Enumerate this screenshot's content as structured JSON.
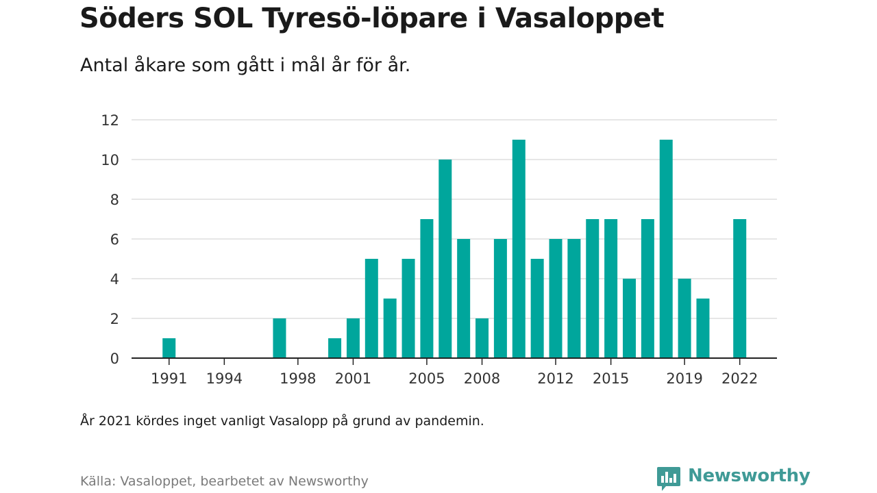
{
  "title": "Söders SOL Tyresö-löpare i Vasaloppet",
  "subtitle": "Antal åkare som gått i mål år för år.",
  "note": "År 2021 kördes inget vanligt Vasalopp på grund av pandemin.",
  "source": "Källa: Vasaloppet, bearbetet av Newsworthy",
  "brand": "Newsworthy",
  "colors": {
    "bar": "#00a69c",
    "grid": "#dddddd",
    "axis": "#222222",
    "brand": "#3f9a96"
  },
  "icons": {
    "logo": "newsworthy-logo-icon"
  },
  "chart_data": {
    "type": "bar",
    "title": "Söders SOL Tyresö-löpare i Vasaloppet",
    "subtitle": "Antal åkare som gått i mål år för år.",
    "xlabel": "",
    "ylabel": "",
    "x_tick_labels": [
      "1991",
      "1994",
      "1998",
      "2001",
      "2005",
      "2008",
      "2012",
      "2015",
      "2019",
      "2022"
    ],
    "y_tick_labels": [
      "0",
      "2",
      "4",
      "6",
      "8",
      "10",
      "12"
    ],
    "xlim": [
      1989,
      2024
    ],
    "ylim": [
      0,
      12
    ],
    "grid": true,
    "points": [
      {
        "year": 1991,
        "value": 1
      },
      {
        "year": 1997,
        "value": 2
      },
      {
        "year": 2000,
        "value": 1
      },
      {
        "year": 2001,
        "value": 2
      },
      {
        "year": 2002,
        "value": 5
      },
      {
        "year": 2003,
        "value": 3
      },
      {
        "year": 2004,
        "value": 5
      },
      {
        "year": 2005,
        "value": 7
      },
      {
        "year": 2006,
        "value": 10
      },
      {
        "year": 2007,
        "value": 6
      },
      {
        "year": 2008,
        "value": 2
      },
      {
        "year": 2009,
        "value": 6
      },
      {
        "year": 2010,
        "value": 11
      },
      {
        "year": 2011,
        "value": 5
      },
      {
        "year": 2012,
        "value": 6
      },
      {
        "year": 2013,
        "value": 6
      },
      {
        "year": 2014,
        "value": 7
      },
      {
        "year": 2015,
        "value": 7
      },
      {
        "year": 2016,
        "value": 4
      },
      {
        "year": 2017,
        "value": 7
      },
      {
        "year": 2018,
        "value": 11
      },
      {
        "year": 2019,
        "value": 4
      },
      {
        "year": 2020,
        "value": 3
      },
      {
        "year": 2022,
        "value": 7
      }
    ]
  }
}
